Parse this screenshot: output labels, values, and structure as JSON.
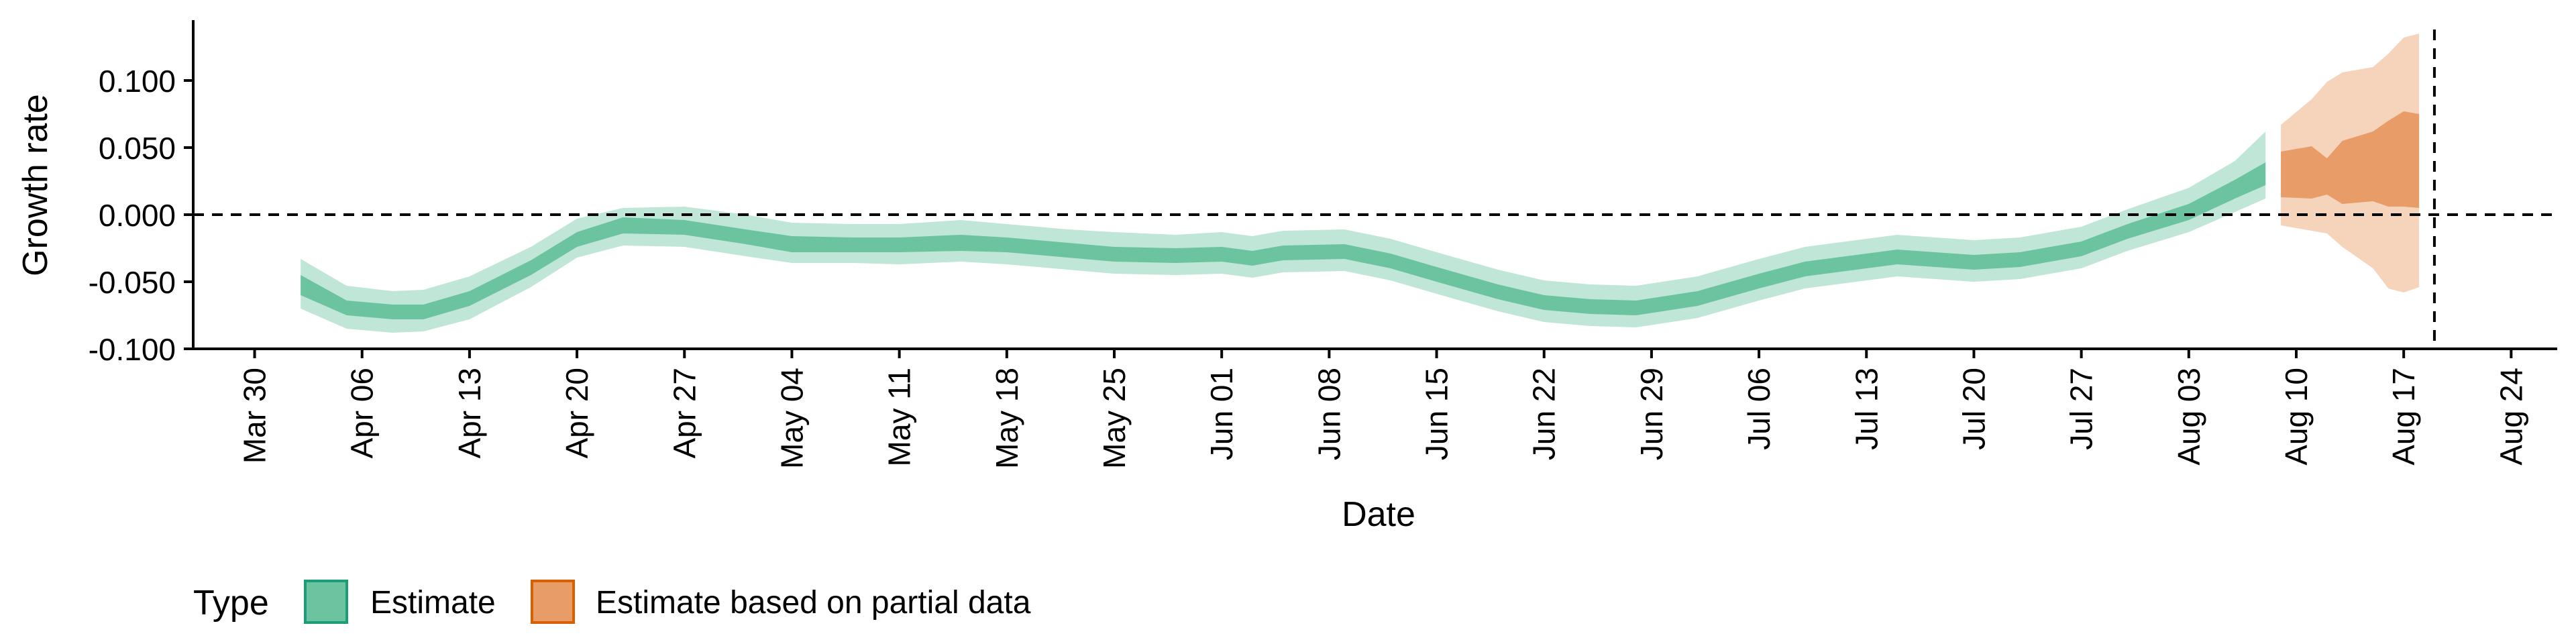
{
  "chart_data": {
    "type": "area",
    "title": "",
    "xlabel": "Date",
    "ylabel": "Growth rate",
    "x_tick_labels": [
      "Mar 30",
      "Apr 06",
      "Apr 13",
      "Apr 20",
      "Apr 27",
      "May 04",
      "May 11",
      "May 18",
      "May 25",
      "Jun 01",
      "Jun 08",
      "Jun 15",
      "Jun 22",
      "Jun 29",
      "Jul 06",
      "Jul 13",
      "Jul 20",
      "Jul 27",
      "Aug 03",
      "Aug 10",
      "Aug 17",
      "Aug 24"
    ],
    "y_tick_labels": [
      "-0.100",
      "-0.050",
      "0.000",
      "0.050",
      "0.100"
    ],
    "xlim": [
      "2020-03-26",
      "2020-08-27"
    ],
    "ylim": [
      -0.1,
      0.145
    ],
    "reference_lines": {
      "horizontal_y": 0.0,
      "vertical_x": "2020-08-19"
    },
    "legend": {
      "title": "Type",
      "position": "bottom-left",
      "entries": [
        {
          "label": "Estimate",
          "color": "#66c2a5"
        },
        {
          "label": "Estimate based on partial data",
          "color": "#fc8d62"
        }
      ]
    },
    "colors": {
      "estimate_outer": "#bfe6d7",
      "estimate_inner": "#6cc3a0",
      "partial_outer": "#f6d3bb",
      "partial_inner": "#e89c68"
    },
    "series": [
      {
        "name": "Estimate",
        "bands": [
          "90% interval",
          "50% interval"
        ],
        "points": [
          {
            "date": "2020-04-02",
            "lo90": -0.07,
            "lo50": -0.06,
            "hi50": -0.045,
            "hi90": -0.033
          },
          {
            "date": "2020-04-05",
            "lo90": -0.085,
            "lo50": -0.075,
            "hi50": -0.064,
            "hi90": -0.053
          },
          {
            "date": "2020-04-08",
            "lo90": -0.088,
            "lo50": -0.078,
            "hi50": -0.067,
            "hi90": -0.057
          },
          {
            "date": "2020-04-10",
            "lo90": -0.087,
            "lo50": -0.078,
            "hi50": -0.067,
            "hi90": -0.056
          },
          {
            "date": "2020-04-13",
            "lo90": -0.078,
            "lo50": -0.068,
            "hi50": -0.057,
            "hi90": -0.046
          },
          {
            "date": "2020-04-17",
            "lo90": -0.054,
            "lo50": -0.045,
            "hi50": -0.034,
            "hi90": -0.024
          },
          {
            "date": "2020-04-20",
            "lo90": -0.032,
            "lo50": -0.024,
            "hi50": -0.013,
            "hi90": -0.003
          },
          {
            "date": "2020-04-23",
            "lo90": -0.023,
            "lo50": -0.014,
            "hi50": -0.002,
            "hi90": 0.005
          },
          {
            "date": "2020-04-27",
            "lo90": -0.024,
            "lo50": -0.015,
            "hi50": -0.004,
            "hi90": 0.006
          },
          {
            "date": "2020-05-01",
            "lo90": -0.031,
            "lo50": -0.022,
            "hi50": -0.011,
            "hi90": 0.0
          },
          {
            "date": "2020-05-04",
            "lo90": -0.036,
            "lo50": -0.028,
            "hi50": -0.016,
            "hi90": -0.006
          },
          {
            "date": "2020-05-08",
            "lo90": -0.036,
            "lo50": -0.028,
            "hi50": -0.017,
            "hi90": -0.007
          },
          {
            "date": "2020-05-11",
            "lo90": -0.037,
            "lo50": -0.028,
            "hi50": -0.017,
            "hi90": -0.007
          },
          {
            "date": "2020-05-15",
            "lo90": -0.035,
            "lo50": -0.027,
            "hi50": -0.015,
            "hi90": -0.004
          },
          {
            "date": "2020-05-18",
            "lo90": -0.037,
            "lo50": -0.028,
            "hi50": -0.017,
            "hi90": -0.007
          },
          {
            "date": "2020-05-22",
            "lo90": -0.041,
            "lo50": -0.032,
            "hi50": -0.021,
            "hi90": -0.011
          },
          {
            "date": "2020-05-25",
            "lo90": -0.044,
            "lo50": -0.035,
            "hi50": -0.024,
            "hi90": -0.013
          },
          {
            "date": "2020-05-29",
            "lo90": -0.045,
            "lo50": -0.036,
            "hi50": -0.025,
            "hi90": -0.015
          },
          {
            "date": "2020-06-01",
            "lo90": -0.044,
            "lo50": -0.035,
            "hi50": -0.024,
            "hi90": -0.013
          },
          {
            "date": "2020-06-03",
            "lo90": -0.047,
            "lo50": -0.038,
            "hi50": -0.027,
            "hi90": -0.016
          },
          {
            "date": "2020-06-05",
            "lo90": -0.043,
            "lo50": -0.034,
            "hi50": -0.023,
            "hi90": -0.012
          },
          {
            "date": "2020-06-09",
            "lo90": -0.042,
            "lo50": -0.033,
            "hi50": -0.022,
            "hi90": -0.011
          },
          {
            "date": "2020-06-12",
            "lo90": -0.049,
            "lo50": -0.04,
            "hi50": -0.029,
            "hi90": -0.018
          },
          {
            "date": "2020-06-15",
            "lo90": -0.059,
            "lo50": -0.05,
            "hi50": -0.039,
            "hi90": -0.028
          },
          {
            "date": "2020-06-19",
            "lo90": -0.072,
            "lo50": -0.063,
            "hi50": -0.052,
            "hi90": -0.041
          },
          {
            "date": "2020-06-22",
            "lo90": -0.08,
            "lo50": -0.071,
            "hi50": -0.06,
            "hi90": -0.049
          },
          {
            "date": "2020-06-25",
            "lo90": -0.083,
            "lo50": -0.074,
            "hi50": -0.063,
            "hi90": -0.052
          },
          {
            "date": "2020-06-28",
            "lo90": -0.084,
            "lo50": -0.075,
            "hi50": -0.064,
            "hi90": -0.053
          },
          {
            "date": "2020-07-02",
            "lo90": -0.077,
            "lo50": -0.068,
            "hi50": -0.057,
            "hi90": -0.046
          },
          {
            "date": "2020-07-06",
            "lo90": -0.064,
            "lo50": -0.055,
            "hi50": -0.044,
            "hi90": -0.033
          },
          {
            "date": "2020-07-09",
            "lo90": -0.055,
            "lo50": -0.046,
            "hi50": -0.035,
            "hi90": -0.024
          },
          {
            "date": "2020-07-13",
            "lo90": -0.049,
            "lo50": -0.04,
            "hi50": -0.029,
            "hi90": -0.018
          },
          {
            "date": "2020-07-15",
            "lo90": -0.046,
            "lo50": -0.037,
            "hi50": -0.026,
            "hi90": -0.015
          },
          {
            "date": "2020-07-20",
            "lo90": -0.05,
            "lo50": -0.041,
            "hi50": -0.03,
            "hi90": -0.019
          },
          {
            "date": "2020-07-23",
            "lo90": -0.048,
            "lo50": -0.039,
            "hi50": -0.028,
            "hi90": -0.017
          },
          {
            "date": "2020-07-27",
            "lo90": -0.04,
            "lo50": -0.031,
            "hi50": -0.02,
            "hi90": -0.009
          },
          {
            "date": "2020-07-30",
            "lo90": -0.027,
            "lo50": -0.018,
            "hi50": -0.007,
            "hi90": 0.004
          },
          {
            "date": "2020-08-03",
            "lo90": -0.013,
            "lo50": -0.004,
            "hi50": 0.008,
            "hi90": 0.02
          },
          {
            "date": "2020-08-06",
            "lo90": 0.002,
            "lo50": 0.012,
            "hi50": 0.026,
            "hi90": 0.04
          },
          {
            "date": "2020-08-08",
            "lo90": 0.012,
            "lo50": 0.022,
            "hi50": 0.039,
            "hi90": 0.062
          }
        ]
      },
      {
        "name": "Estimate based on partial data",
        "bands": [
          "90% interval",
          "50% interval"
        ],
        "points": [
          {
            "date": "2020-08-09",
            "lo90": -0.008,
            "lo50": 0.013,
            "hi50": 0.047,
            "hi90": 0.067
          },
          {
            "date": "2020-08-11",
            "lo90": -0.012,
            "lo50": 0.012,
            "hi50": 0.051,
            "hi90": 0.086
          },
          {
            "date": "2020-08-12",
            "lo90": -0.014,
            "lo50": 0.015,
            "hi50": 0.042,
            "hi90": 0.099
          },
          {
            "date": "2020-08-13",
            "lo90": -0.024,
            "lo50": 0.008,
            "hi50": 0.055,
            "hi90": 0.106
          },
          {
            "date": "2020-08-15",
            "lo90": -0.04,
            "lo50": 0.01,
            "hi50": 0.062,
            "hi90": 0.11
          },
          {
            "date": "2020-08-16",
            "lo90": -0.055,
            "lo50": 0.006,
            "hi50": 0.07,
            "hi90": 0.12
          },
          {
            "date": "2020-08-17",
            "lo90": -0.058,
            "lo50": 0.006,
            "hi50": 0.077,
            "hi90": 0.132
          },
          {
            "date": "2020-08-18",
            "lo90": -0.054,
            "lo50": 0.005,
            "hi50": 0.075,
            "hi90": 0.135
          }
        ]
      }
    ]
  }
}
